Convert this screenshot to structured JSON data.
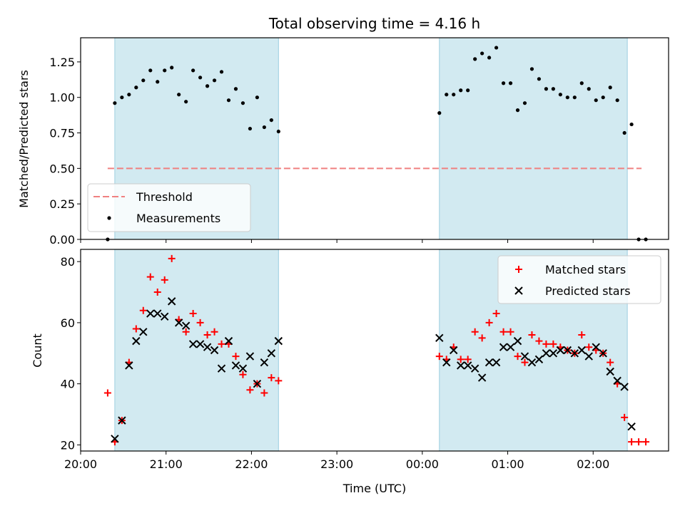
{
  "chart_data": [
    {
      "type": "scatter",
      "title": "Total observing time = 4.16 h",
      "ylabel": "Matched/Predicted stars",
      "xlabel": "",
      "xlim": [
        "20:00",
        "02:53"
      ],
      "ylim": [
        0,
        1.42
      ],
      "yticks": [
        "0.00",
        "0.25",
        "0.50",
        "0.75",
        "1.00",
        "1.25"
      ],
      "highlight_windows": [
        [
          "20:24",
          "22:19"
        ],
        [
          "00:12",
          "02:24"
        ]
      ],
      "highlight_color": "#add8e6",
      "threshold": {
        "name": "Threshold",
        "value": 0.5,
        "x_range": [
          "20:19",
          "02:34"
        ],
        "color": "#f08080",
        "style": "dashed"
      },
      "series": [
        {
          "name": "Measurements",
          "color": "#000000",
          "marker": "dot",
          "points": [
            [
              "20:19",
              0.0
            ],
            [
              "20:24",
              0.96
            ],
            [
              "20:29",
              1.0
            ],
            [
              "20:34",
              1.02
            ],
            [
              "20:39",
              1.07
            ],
            [
              "20:44",
              1.12
            ],
            [
              "20:49",
              1.19
            ],
            [
              "20:54",
              1.11
            ],
            [
              "20:59",
              1.19
            ],
            [
              "21:04",
              1.21
            ],
            [
              "21:09",
              1.02
            ],
            [
              "21:14",
              0.97
            ],
            [
              "21:19",
              1.19
            ],
            [
              "21:24",
              1.14
            ],
            [
              "21:29",
              1.08
            ],
            [
              "21:34",
              1.12
            ],
            [
              "21:39",
              1.18
            ],
            [
              "21:44",
              0.98
            ],
            [
              "21:49",
              1.06
            ],
            [
              "21:54",
              0.96
            ],
            [
              "21:59",
              0.78
            ],
            [
              "22:04",
              1.0
            ],
            [
              "22:09",
              0.79
            ],
            [
              "22:14",
              0.84
            ],
            [
              "22:19",
              0.76
            ],
            [
              "00:12",
              0.89
            ],
            [
              "00:17",
              1.02
            ],
            [
              "00:22",
              1.02
            ],
            [
              "00:27",
              1.05
            ],
            [
              "00:32",
              1.05
            ],
            [
              "00:37",
              1.27
            ],
            [
              "00:42",
              1.31
            ],
            [
              "00:47",
              1.28
            ],
            [
              "00:52",
              1.35
            ],
            [
              "00:57",
              1.1
            ],
            [
              "01:02",
              1.1
            ],
            [
              "01:07",
              0.91
            ],
            [
              "01:12",
              0.96
            ],
            [
              "01:17",
              1.2
            ],
            [
              "01:22",
              1.13
            ],
            [
              "01:27",
              1.06
            ],
            [
              "01:32",
              1.06
            ],
            [
              "01:37",
              1.02
            ],
            [
              "01:42",
              1.0
            ],
            [
              "01:47",
              1.0
            ],
            [
              "01:52",
              1.1
            ],
            [
              "01:57",
              1.06
            ],
            [
              "02:02",
              0.98
            ],
            [
              "02:07",
              1.0
            ],
            [
              "02:12",
              1.07
            ],
            [
              "02:17",
              0.98
            ],
            [
              "02:22",
              0.75
            ],
            [
              "02:27",
              0.81
            ],
            [
              "02:32",
              0.0
            ],
            [
              "02:37",
              0.0
            ]
          ]
        }
      ],
      "legend": {
        "placement": "bottom-left",
        "entries": [
          "Threshold",
          "Measurements"
        ]
      }
    },
    {
      "type": "scatter",
      "title": "",
      "ylabel": "Count",
      "xlabel": "Time (UTC)",
      "xlim": [
        "20:00",
        "02:53"
      ],
      "xticks": [
        "20:00",
        "21:00",
        "22:00",
        "23:00",
        "00:00",
        "01:00",
        "02:00"
      ],
      "ylim": [
        18,
        84
      ],
      "yticks": [
        "20",
        "40",
        "60",
        "80"
      ],
      "highlight_windows": [
        [
          "20:24",
          "22:19"
        ],
        [
          "00:12",
          "02:24"
        ]
      ],
      "highlight_color": "#add8e6",
      "series": [
        {
          "name": "Matched stars",
          "color": "#ff0000",
          "marker": "plus",
          "points": [
            [
              "20:19",
              37
            ],
            [
              "20:24",
              21
            ],
            [
              "20:29",
              28
            ],
            [
              "20:34",
              47
            ],
            [
              "20:39",
              58
            ],
            [
              "20:44",
              64
            ],
            [
              "20:49",
              75
            ],
            [
              "20:54",
              70
            ],
            [
              "20:59",
              74
            ],
            [
              "21:04",
              81
            ],
            [
              "21:09",
              61
            ],
            [
              "21:14",
              57
            ],
            [
              "21:19",
              63
            ],
            [
              "21:24",
              60
            ],
            [
              "21:29",
              56
            ],
            [
              "21:34",
              57
            ],
            [
              "21:39",
              53
            ],
            [
              "21:44",
              53
            ],
            [
              "21:49",
              49
            ],
            [
              "21:54",
              43
            ],
            [
              "21:59",
              38
            ],
            [
              "22:04",
              40
            ],
            [
              "22:09",
              37
            ],
            [
              "22:14",
              42
            ],
            [
              "22:19",
              41
            ],
            [
              "00:12",
              49
            ],
            [
              "00:17",
              48
            ],
            [
              "00:22",
              52
            ],
            [
              "00:27",
              48
            ],
            [
              "00:32",
              48
            ],
            [
              "00:37",
              57
            ],
            [
              "00:42",
              55
            ],
            [
              "00:47",
              60
            ],
            [
              "00:52",
              63
            ],
            [
              "00:57",
              57
            ],
            [
              "01:02",
              57
            ],
            [
              "01:07",
              49
            ],
            [
              "01:12",
              47
            ],
            [
              "01:17",
              56
            ],
            [
              "01:22",
              54
            ],
            [
              "01:27",
              53
            ],
            [
              "01:32",
              53
            ],
            [
              "01:37",
              52
            ],
            [
              "01:42",
              51
            ],
            [
              "01:47",
              50
            ],
            [
              "01:52",
              56
            ],
            [
              "01:57",
              52
            ],
            [
              "02:02",
              51
            ],
            [
              "02:07",
              50
            ],
            [
              "02:12",
              47
            ],
            [
              "02:17",
              40
            ],
            [
              "02:22",
              29
            ],
            [
              "02:27",
              21
            ],
            [
              "02:32",
              21
            ],
            [
              "02:37",
              21
            ]
          ]
        },
        {
          "name": "Predicted stars",
          "color": "#000000",
          "marker": "x",
          "points": [
            [
              "20:24",
              22
            ],
            [
              "20:29",
              28
            ],
            [
              "20:34",
              46
            ],
            [
              "20:39",
              54
            ],
            [
              "20:44",
              57
            ],
            [
              "20:49",
              63
            ],
            [
              "20:54",
              63
            ],
            [
              "20:59",
              62
            ],
            [
              "21:04",
              67
            ],
            [
              "21:09",
              60
            ],
            [
              "21:14",
              59
            ],
            [
              "21:19",
              53
            ],
            [
              "21:24",
              53
            ],
            [
              "21:29",
              52
            ],
            [
              "21:34",
              51
            ],
            [
              "21:39",
              45
            ],
            [
              "21:44",
              54
            ],
            [
              "21:49",
              46
            ],
            [
              "21:54",
              45
            ],
            [
              "21:59",
              49
            ],
            [
              "22:04",
              40
            ],
            [
              "22:09",
              47
            ],
            [
              "22:14",
              50
            ],
            [
              "22:19",
              54
            ],
            [
              "00:12",
              55
            ],
            [
              "00:17",
              47
            ],
            [
              "00:22",
              51
            ],
            [
              "00:27",
              46
            ],
            [
              "00:32",
              46
            ],
            [
              "00:37",
              45
            ],
            [
              "00:42",
              42
            ],
            [
              "00:47",
              47
            ],
            [
              "00:52",
              47
            ],
            [
              "00:57",
              52
            ],
            [
              "01:02",
              52
            ],
            [
              "01:07",
              54
            ],
            [
              "01:12",
              49
            ],
            [
              "01:17",
              47
            ],
            [
              "01:22",
              48
            ],
            [
              "01:27",
              50
            ],
            [
              "01:32",
              50
            ],
            [
              "01:37",
              51
            ],
            [
              "01:42",
              51
            ],
            [
              "01:47",
              50
            ],
            [
              "01:52",
              51
            ],
            [
              "01:57",
              49
            ],
            [
              "02:02",
              52
            ],
            [
              "02:07",
              50
            ],
            [
              "02:12",
              44
            ],
            [
              "02:17",
              41
            ],
            [
              "02:22",
              39
            ],
            [
              "02:27",
              26
            ]
          ]
        }
      ],
      "legend": {
        "placement": "top-right",
        "entries": [
          "Matched stars",
          "Predicted stars"
        ]
      }
    }
  ]
}
